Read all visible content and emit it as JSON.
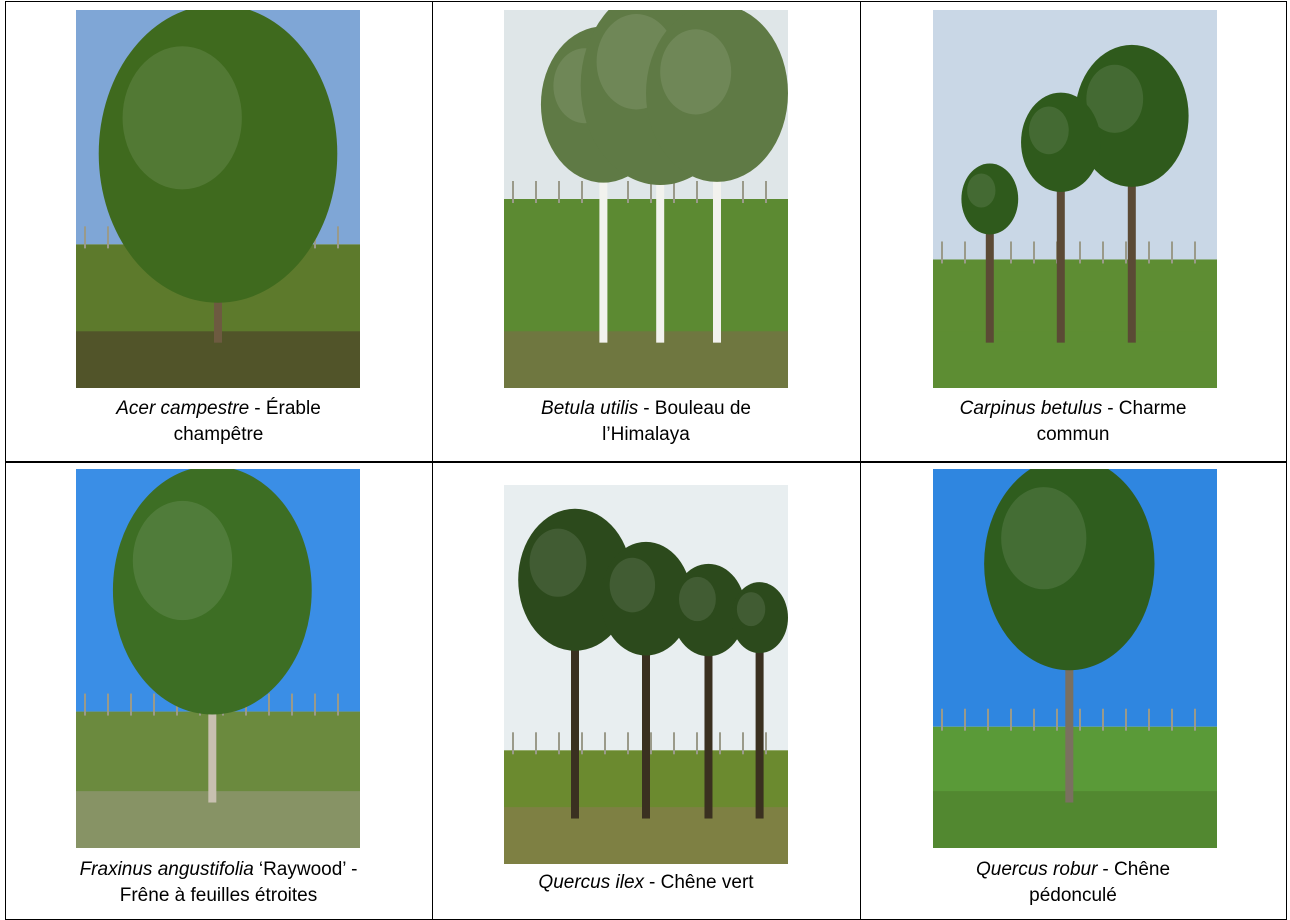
{
  "cells": [
    {
      "latin": "Acer campestre",
      "rest": "- Érable champêtre"
    },
    {
      "latin": "Betula utilis",
      "rest": "- Bouleau de l’Himalaya"
    },
    {
      "latin": "Carpinus betulus",
      "rest": "- Charme commun"
    },
    {
      "latin": "Fraxinus angustifolia",
      "rest": "‘Raywood’ - Frêne à feuilles étroites"
    },
    {
      "latin": "Quercus ilex",
      "rest": "- Chêne vert"
    },
    {
      "latin": "Quercus robur",
      "rest": "- Chêne pédonculé"
    }
  ]
}
